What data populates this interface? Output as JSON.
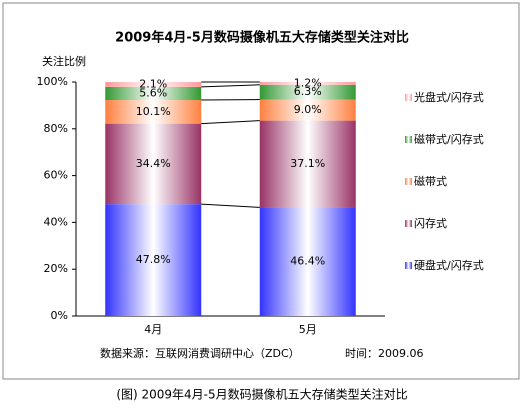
{
  "chart_data": {
    "type": "stacked_bar_percent",
    "title": "2009年4月-5月数码摄像机五大存储类型关注对比",
    "y_label": "关注比例",
    "categories": [
      "4月",
      "5月"
    ],
    "series": [
      {
        "name": "硬盘式/闪存式",
        "color": "#3333ff",
        "values": [
          47.8,
          46.4
        ],
        "value_labels": [
          "47.8%",
          "46.4%"
        ]
      },
      {
        "name": "闪存式",
        "color": "#993366",
        "values": [
          34.4,
          37.1
        ],
        "value_labels": [
          "34.4%",
          "37.1%"
        ]
      },
      {
        "name": "磁带式",
        "color": "#ff8040",
        "values": [
          10.1,
          9.0
        ],
        "value_labels": [
          "10.1%",
          "9.0%"
        ]
      },
      {
        "name": "磁带式/闪存式",
        "color": "#339933",
        "values": [
          5.6,
          6.3
        ],
        "value_labels": [
          "5.6%",
          "6.3%"
        ]
      },
      {
        "name": "光盘式/闪存式",
        "color": "#ff9999",
        "values": [
          2.1,
          1.2
        ],
        "value_labels": [
          "2.1%",
          "1.2%"
        ]
      }
    ],
    "ylim": [
      0,
      100
    ],
    "yticks": [
      {
        "value": 0,
        "label": "0%"
      },
      {
        "value": 20,
        "label": "20%"
      },
      {
        "value": 40,
        "label": "40%"
      },
      {
        "value": 60,
        "label": "60%"
      },
      {
        "value": 80,
        "label": "80%"
      },
      {
        "value": 100,
        "label": "100%"
      }
    ],
    "source": "数据来源：互联网消费调研中心（ZDC）",
    "time": "时间：2009.06",
    "caption": "(图) 2009年4月-5月数码摄像机五大存储类型关注对比",
    "legend": "right"
  }
}
